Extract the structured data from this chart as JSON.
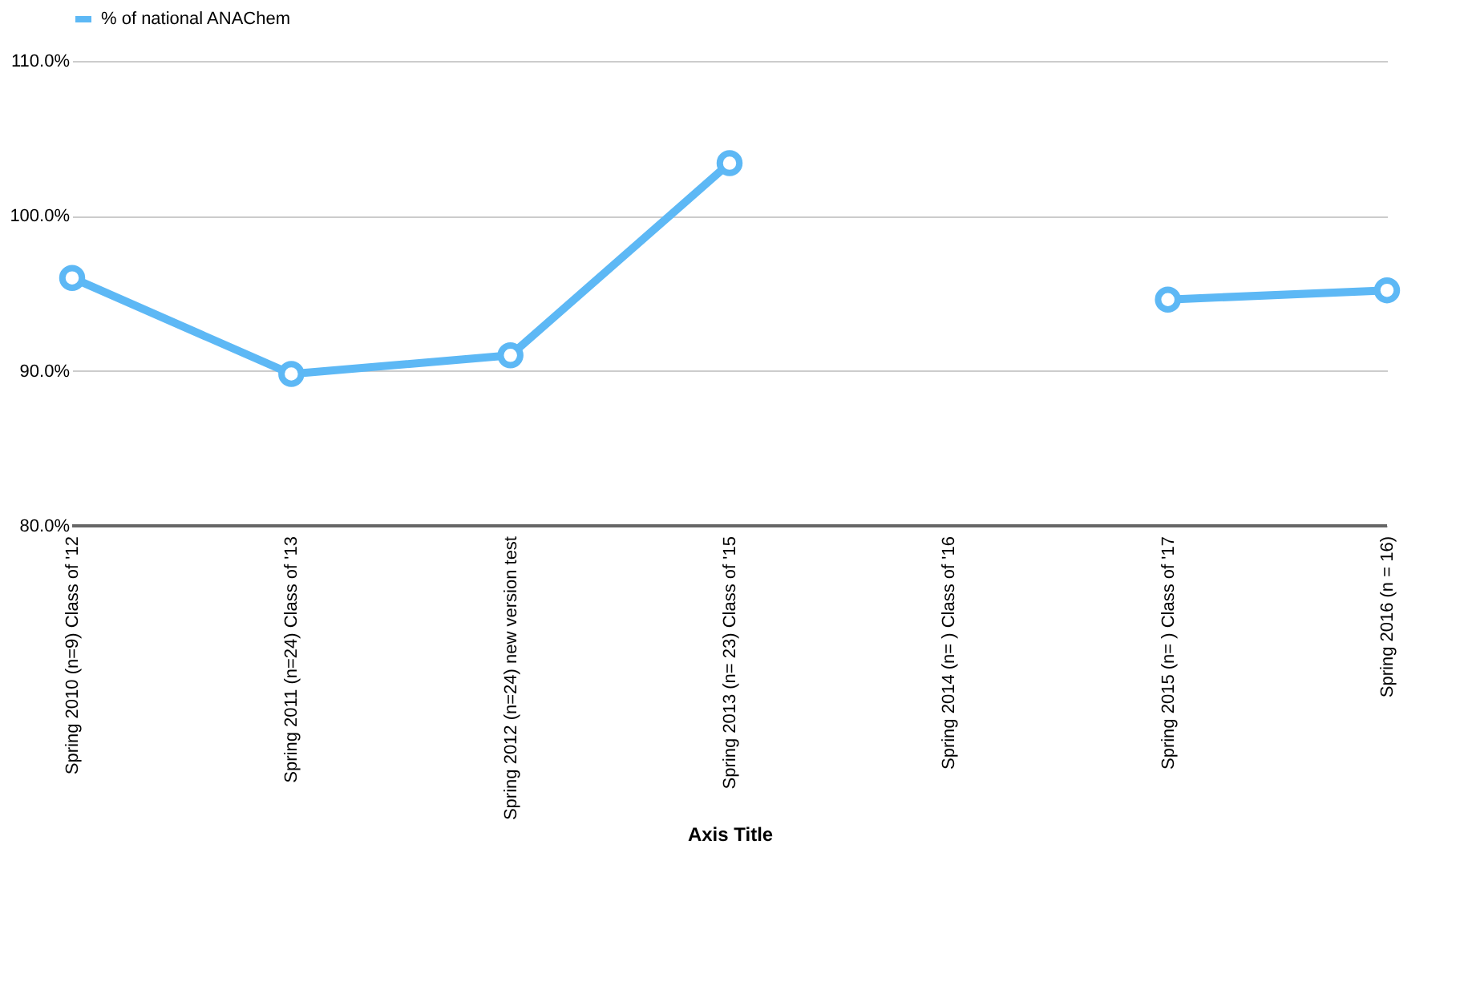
{
  "chart_data": {
    "type": "line",
    "xlabel": "Axis Title",
    "categories": [
      "Spring 2010 (n=9) Class of '12",
      "Spring 2011 (n=24) Class of '13",
      "Spring 2012 (n=24) new version test",
      "Spring 2013 (n= 23)   Class of '15",
      "Spring 2014 (n= ) Class of '16",
      "Spring 2015 (n= ) Class of '17",
      "Spring 2016 (n = 16)"
    ],
    "series": [
      {
        "name": "% of national ANAChem",
        "color": "#5db8f5",
        "values": [
          96.0,
          89.8,
          91.0,
          103.4,
          null,
          94.6,
          95.2
        ]
      }
    ],
    "ylim": [
      80,
      110
    ],
    "yticks": [
      {
        "value": 80,
        "label": "80.0%"
      },
      {
        "value": 90,
        "label": "90.0%"
      },
      {
        "value": 100,
        "label": "100.0%"
      },
      {
        "value": 110,
        "label": "110.0%"
      }
    ],
    "grid": "y",
    "legend": "top",
    "marker": "circle",
    "line_style": "solid"
  }
}
